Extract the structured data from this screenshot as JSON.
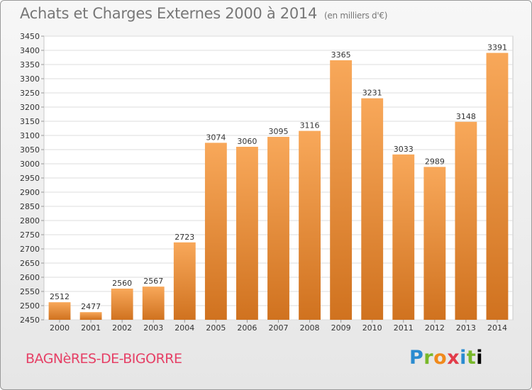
{
  "header": {
    "title": "Achats et Charges Externes 2000 à 2014",
    "subtitle": "(en milliers d'€)"
  },
  "footer": {
    "commune": "BAGNèRES-DE-BIGORRE",
    "logo_letters": [
      "P",
      "r",
      "o",
      "x",
      "i",
      "t",
      "i"
    ]
  },
  "chart_data": {
    "type": "bar",
    "title": "Achats et Charges Externes 2000 à 2014",
    "subtitle": "(en milliers d'€)",
    "xlabel": "",
    "ylabel": "",
    "categories": [
      "2000",
      "2001",
      "2002",
      "2003",
      "2004",
      "2005",
      "2006",
      "2007",
      "2008",
      "2009",
      "2010",
      "2011",
      "2012",
      "2013",
      "2014"
    ],
    "values": [
      2512,
      2477,
      2560,
      2567,
      2723,
      3074,
      3060,
      3095,
      3116,
      3365,
      3231,
      3033,
      2989,
      3148,
      3391
    ],
    "ylim": [
      2450,
      3450
    ],
    "yticks": [
      2450,
      2500,
      2550,
      2600,
      2650,
      2700,
      2750,
      2800,
      2850,
      2900,
      2950,
      3000,
      3050,
      3100,
      3150,
      3200,
      3250,
      3300,
      3350,
      3400,
      3450
    ],
    "grid": true,
    "legend": "none",
    "bar_color_light": "#f8a85a",
    "bar_color_dark": "#d0721f"
  }
}
